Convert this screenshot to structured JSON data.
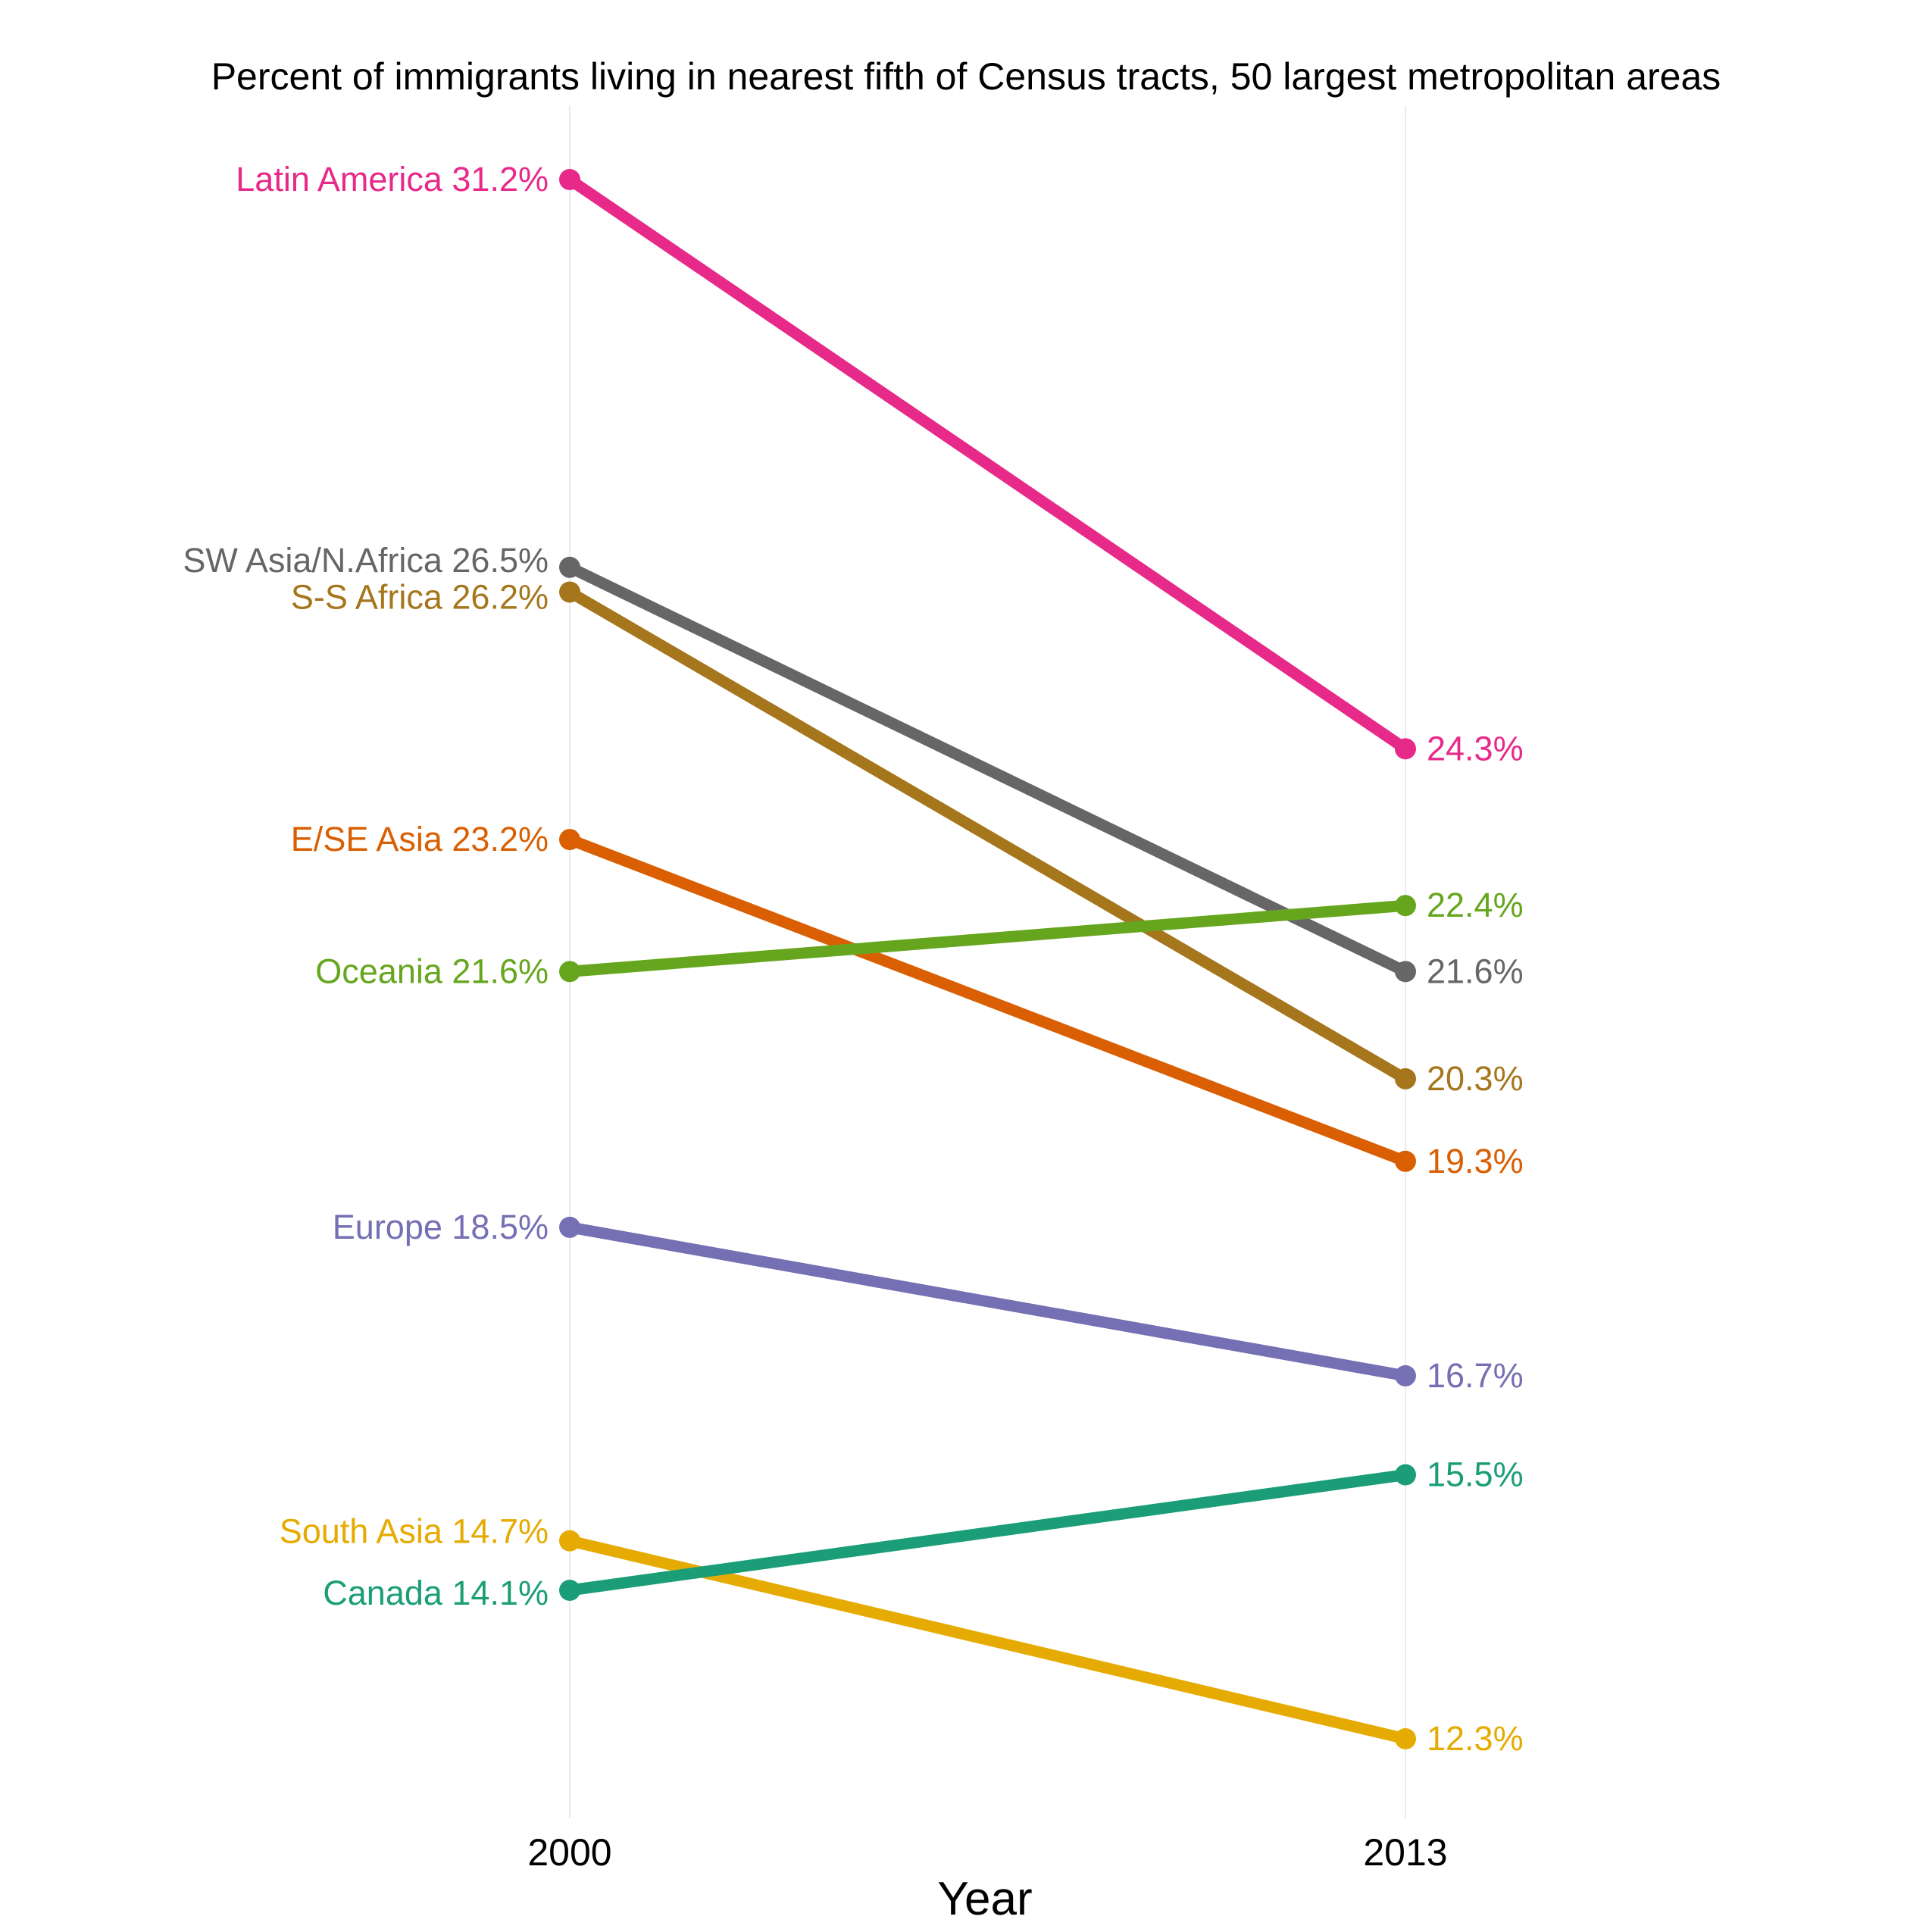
{
  "chart_data": {
    "type": "line",
    "title": "Percent of immigrants living in nearest fifth of Census tracts, 50 largest metropolitan areas",
    "xlabel": "Year",
    "ylabel": "",
    "x": [
      "2000",
      "2013"
    ],
    "grid": "vertical gridlines only",
    "legend": "none (direct labels)",
    "series": [
      {
        "name": "Latin America",
        "color": "#e7298a",
        "values": [
          31.2,
          24.3
        ],
        "label_start": "Latin America 31.2%",
        "label_end": "24.3%"
      },
      {
        "name": "SW Asia/N.Africa",
        "color": "#666666",
        "values": [
          26.5,
          21.6
        ],
        "label_start": "SW Asia/N.Africa 26.5%",
        "label_end": "21.6%"
      },
      {
        "name": "S-S Africa",
        "color": "#a6761d",
        "values": [
          26.2,
          20.3
        ],
        "label_start": "S-S Africa 26.2%",
        "label_end": "20.3%"
      },
      {
        "name": "E/SE Asia",
        "color": "#d95f02",
        "values": [
          23.2,
          19.3
        ],
        "label_start": "E/SE Asia 23.2%",
        "label_end": "19.3%"
      },
      {
        "name": "Oceania",
        "color": "#66a61e",
        "values": [
          21.6,
          22.4
        ],
        "label_start": "Oceania 21.6%",
        "label_end": "22.4%"
      },
      {
        "name": "Europe",
        "color": "#7570b3",
        "values": [
          18.5,
          16.7
        ],
        "label_start": "Europe 18.5%",
        "label_end": "16.7%"
      },
      {
        "name": "South Asia",
        "color": "#e6ab02",
        "values": [
          14.7,
          12.3
        ],
        "label_start": "South Asia 14.7%",
        "label_end": "12.3%"
      },
      {
        "name": "Canada",
        "color": "#1b9e77",
        "values": [
          14.1,
          15.5
        ],
        "label_start": "Canada 14.1%",
        "label_end": "15.5%"
      }
    ]
  }
}
